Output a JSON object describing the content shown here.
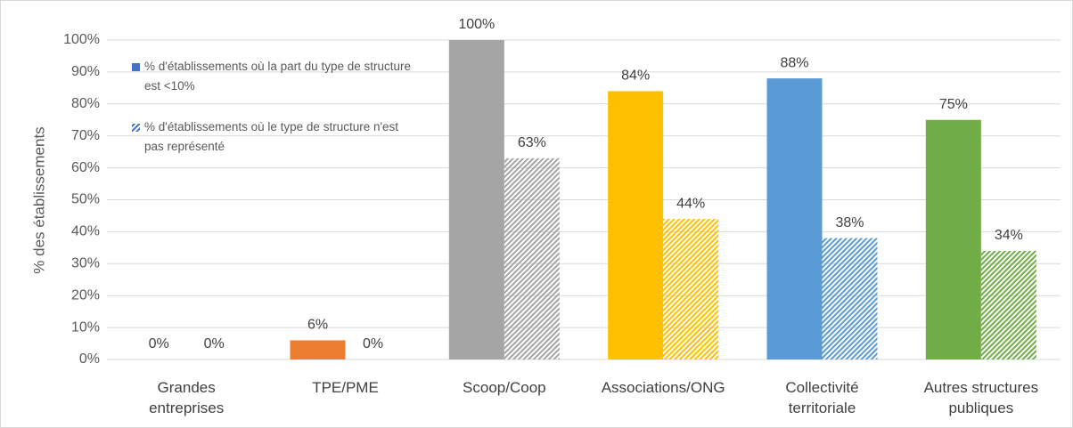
{
  "chart_data": {
    "type": "bar",
    "y_label": "% des établissements",
    "categories": [
      "Grandes\nentreprises",
      "TPE/PME",
      "Scoop/Coop",
      "Associations/ONG",
      "Collectivité\nterritoriale",
      "Autres structures\npubliques"
    ],
    "category_colors": [
      "#4472c4",
      "#ed7d31",
      "#a5a5a5",
      "#ffc000",
      "#5b9bd5",
      "#70ad47"
    ],
    "series": [
      {
        "name": "% d'établissements où la part du type de structure est <10%",
        "color": "#4472c4",
        "hatched": false,
        "values": [
          0,
          6,
          100,
          84,
          88,
          75
        ],
        "value_labels": [
          "0%",
          "6%",
          "100%",
          "84%",
          "88%",
          "75%"
        ]
      },
      {
        "name": "% d'établissements où le type de structure n'est pas représenté",
        "color": "#4472c4",
        "hatched": true,
        "values": [
          0,
          0,
          63,
          44,
          38,
          34
        ],
        "value_labels": [
          "0%",
          "0%",
          "63%",
          "44%",
          "38%",
          "34%"
        ]
      }
    ],
    "ylim": [
      0,
      100
    ],
    "yticks": [
      {
        "value": 0,
        "label": "0%"
      },
      {
        "value": 10,
        "label": "10%"
      },
      {
        "value": 20,
        "label": "20%"
      },
      {
        "value": 30,
        "label": "30%"
      },
      {
        "value": 40,
        "label": "40%"
      },
      {
        "value": 50,
        "label": "50%"
      },
      {
        "value": 60,
        "label": "60%"
      },
      {
        "value": 70,
        "label": "70%"
      },
      {
        "value": 80,
        "label": "80%"
      },
      {
        "value": 90,
        "label": "90%"
      },
      {
        "value": 100,
        "label": "100%"
      }
    ],
    "grid": true,
    "legend": "upper left"
  }
}
